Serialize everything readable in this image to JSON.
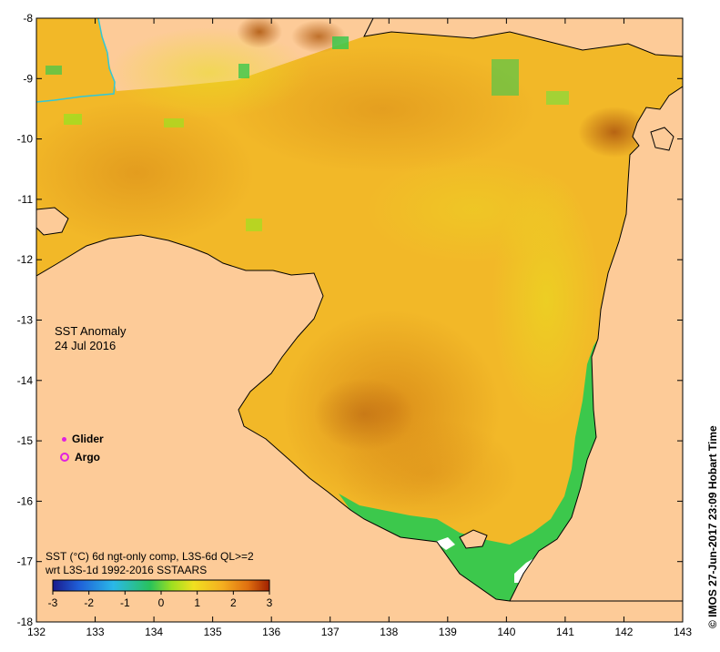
{
  "title": {
    "line1": "SST Anomaly",
    "line2": "24 Jul 2016"
  },
  "legend": {
    "glider": "Glider",
    "argo": "Argo",
    "marker_color": "#e020e0"
  },
  "description": {
    "line1": "SST (°C) 6d ngt-only comp, L3S-6d QL>=2",
    "line2": "wrt L3S-1d 1992-2016 SSTAARS"
  },
  "colorbar": {
    "min": -3,
    "max": 3,
    "tick_labels": [
      "-3",
      "-2",
      "-1",
      "0",
      "1",
      "2",
      "3"
    ],
    "colors": [
      "#1a1a8c",
      "#1f5fd8",
      "#2ab8e8",
      "#29c25a",
      "#9fe020",
      "#f0e020",
      "#f5b020",
      "#e07010",
      "#a02000"
    ]
  },
  "axes": {
    "x_ticks": [
      "132",
      "133",
      "134",
      "135",
      "136",
      "137",
      "138",
      "139",
      "140",
      "141",
      "142",
      "143"
    ],
    "y_ticks": [
      "-8",
      "-9",
      "-10",
      "-11",
      "-12",
      "-13",
      "-14",
      "-15",
      "-16",
      "-17",
      "-18"
    ],
    "lon_range": [
      132,
      143
    ],
    "lat_range": [
      -18,
      -8
    ]
  },
  "credit": "© IMOS 27-Jun-2017 23:09 Hobart Time",
  "colors": {
    "land": "#fdcb98",
    "anomaly_warm": "#f0a020",
    "anomaly_mild": "#f5d020",
    "anomaly_hot": "#c06a10",
    "anomaly_cool": "#3cc84c",
    "no_data": "#ffffff"
  }
}
